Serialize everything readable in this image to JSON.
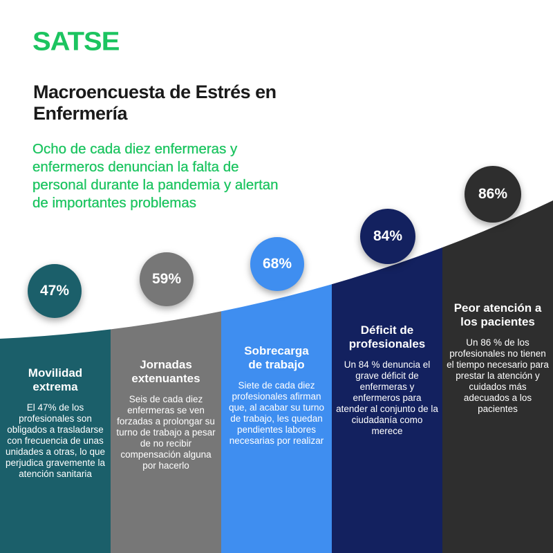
{
  "brand": {
    "logo_text": "SATSE",
    "color": "#1cc460"
  },
  "header": {
    "title": "Macroencuesta de Estrés en Enfermería",
    "subtitle": "Ocho de cada diez enfermeras y enfermeros denuncian la falta de personal durante la pandemia y alertan de importantes problemas"
  },
  "items": [
    {
      "percent": "47%",
      "value": 47,
      "color": "#1b5f6a",
      "title": "Movilidad extrema",
      "text": "El 47% de los profesionales son obligados a trasladarse con frecuencia de unas unidades a otras, lo que perjudica gravemente la atención sanitaria"
    },
    {
      "percent": "59%",
      "value": 59,
      "color": "#777777",
      "title": "Jornadas extenuantes",
      "text": "Seis de cada diez enfermeras se ven forzadas a prolongar su turno de trabajo a pesar de no recibir compensación alguna por hacerlo"
    },
    {
      "percent": "68%",
      "value": 68,
      "color": "#3f8ef0",
      "title": "Sobrecarga de trabajo",
      "text": "Siete de cada diez profesionales afirman que, al acabar su turno de trabajo, les quedan pendientes labores necesarias por realizar"
    },
    {
      "percent": "84%",
      "value": 84,
      "color": "#13215f",
      "title": "Déficit de profesionales",
      "text": "Un 84 % denuncia el grave déficit de enfermeras y enfermeros para atender al conjunto de la ciudadanía como merece"
    },
    {
      "percent": "86%",
      "value": 86,
      "color": "#2e2e2e",
      "title": "Peor atención a los pacientes",
      "text": "Un 86 % de los profesionales no tienen el tiempo necesario para prestar la atención y cuidados más adecuados a los pacientes"
    }
  ]
}
